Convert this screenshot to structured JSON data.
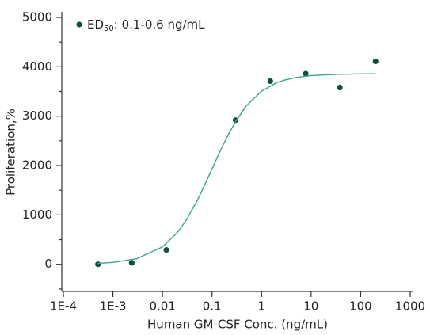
{
  "chart_data": {
    "type": "scatter",
    "x_label": "Human GM-CSF  Conc. (ng/mL)",
    "y_label": "Proliferation,%",
    "xscale": "log",
    "xlim": [
      0.0001,
      1000
    ],
    "xticks": [
      {
        "value": 0.0001,
        "label": "1E-4"
      },
      {
        "value": 0.001,
        "label": "1E-3"
      },
      0.01,
      0.1,
      1,
      10,
      100,
      1000
    ],
    "ylim": [
      -550,
      5000
    ],
    "yticks": [
      0,
      1000,
      2000,
      3000,
      4000,
      5000
    ],
    "yminorticks": [
      -500,
      500,
      1500,
      2500,
      3500,
      4500
    ],
    "legend": "top-left",
    "series": [
      {
        "name": [
          "ED",
          "50",
          ": 0.1-0.6 ng/mL"
        ],
        "color": "#0f4d3c",
        "x": [
          0.0005,
          0.0024,
          0.012,
          0.3,
          1.5,
          7.8,
          38,
          200
        ],
        "values": [
          0,
          30,
          290,
          2920,
          3710,
          3860,
          3580,
          4110
        ]
      },
      {
        "type": "line",
        "color": "#3aa58f",
        "x": [
          0.0005,
          0.001,
          0.003,
          0.01,
          0.02,
          0.03,
          0.05,
          0.07,
          0.1,
          0.15,
          0.2,
          0.3,
          0.5,
          1,
          2,
          3,
          5,
          10,
          30,
          100,
          200
        ],
        "values": [
          19,
          38,
          112,
          351,
          643,
          891,
          1287,
          1589,
          1930,
          2316,
          2573,
          2895,
          3217,
          3509,
          3676,
          3735,
          3784,
          3822,
          3847,
          3856,
          3858
        ]
      }
    ]
  }
}
